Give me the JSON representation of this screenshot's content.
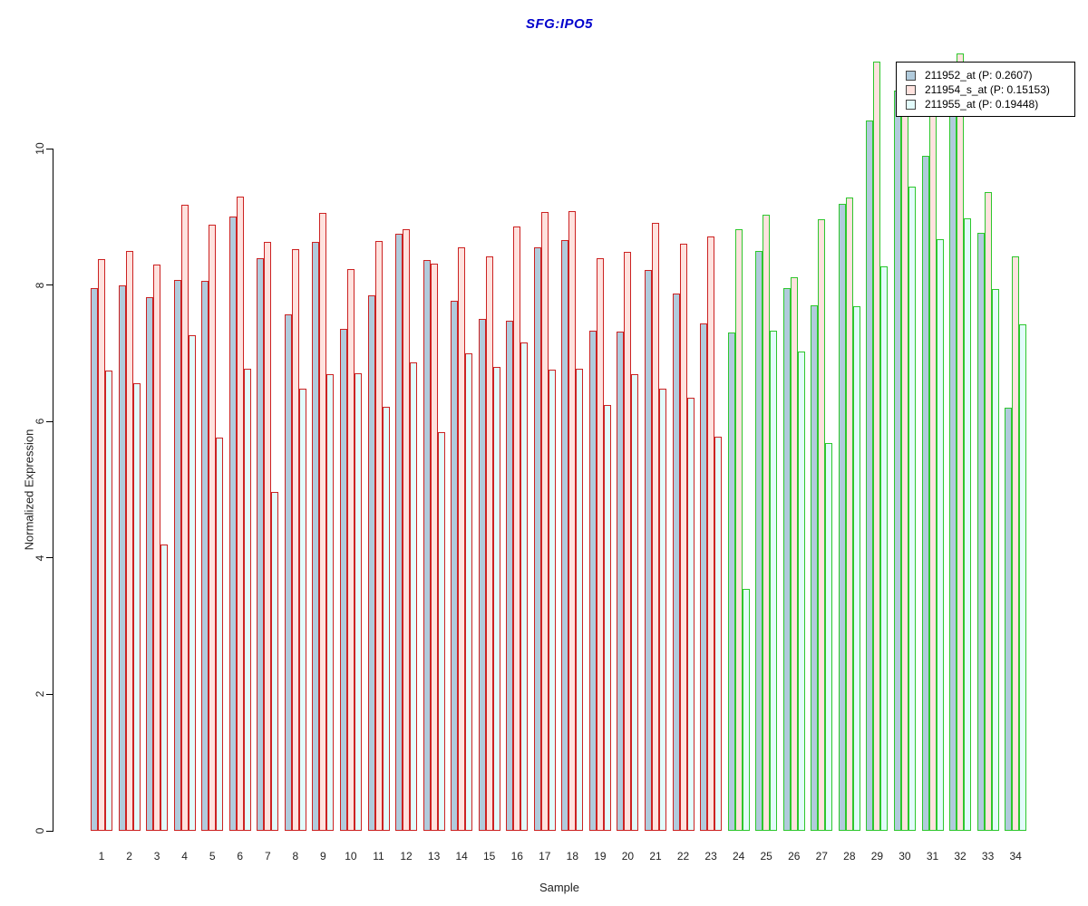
{
  "chart_data": {
    "type": "bar",
    "title": "SFG:IPO5",
    "title_color": "#0000CC",
    "xlabel": "Sample",
    "ylabel": "Normalized Expression",
    "ylim": [
      0,
      10
    ],
    "yticks": [
      0,
      2,
      4,
      6,
      8,
      10
    ],
    "grid": false,
    "legend_position": "top-right",
    "categories": [
      1,
      2,
      3,
      4,
      5,
      6,
      7,
      8,
      9,
      10,
      11,
      12,
      13,
      14,
      15,
      16,
      17,
      18,
      19,
      20,
      21,
      22,
      23,
      24,
      25,
      26,
      27,
      28,
      29,
      30,
      31,
      32,
      33,
      34
    ],
    "bar_outline_groups": {
      "samples_1_to_23": "#CC2222",
      "samples_24_to_34": "#2DC72D"
    },
    "series": [
      {
        "name": "211952_at",
        "p_value": "0.2607",
        "legend_label": "211952_at (P: 0.2607)",
        "fill": "#B1CBDC",
        "values": [
          7.95,
          8.0,
          7.82,
          8.08,
          8.06,
          9.0,
          8.39,
          7.57,
          8.63,
          7.36,
          7.85,
          8.75,
          8.37,
          7.77,
          7.5,
          7.48,
          8.55,
          8.66,
          7.33,
          7.32,
          8.22,
          7.87,
          7.44,
          7.3,
          8.5,
          7.95,
          7.7,
          9.19,
          10.41,
          10.85,
          9.9,
          10.9,
          8.76,
          6.2
        ]
      },
      {
        "name": "211954_s_at",
        "p_value": "0.15153",
        "legend_label": "211954_s_at (P: 0.15153)",
        "fill": "#FFE2DE",
        "values": [
          8.38,
          8.5,
          8.3,
          9.17,
          8.88,
          9.3,
          8.63,
          8.52,
          9.06,
          8.23,
          8.64,
          8.82,
          8.31,
          8.55,
          8.42,
          8.86,
          9.07,
          9.08,
          8.39,
          8.49,
          8.91,
          8.61,
          8.71,
          8.82,
          9.03,
          8.11,
          8.96,
          9.28,
          11.27,
          10.9,
          10.85,
          11.39,
          9.36,
          8.42
        ]
      },
      {
        "name": "211955_at",
        "p_value": "0.19448",
        "legend_label": "211955_at (P: 0.19448)",
        "fill": "#E2FBFB",
        "values": [
          6.75,
          6.56,
          4.2,
          7.26,
          5.76,
          6.77,
          4.97,
          6.48,
          6.69,
          6.71,
          6.21,
          6.87,
          5.84,
          7.0,
          6.8,
          7.16,
          6.76,
          6.77,
          6.24,
          6.69,
          6.48,
          6.35,
          5.78,
          3.55,
          7.33,
          7.03,
          5.68,
          7.69,
          8.27,
          9.44,
          8.67,
          8.98,
          7.94,
          7.43
        ]
      }
    ],
    "note": "Values estimated from pixels; bar tops for some bars of samples 30-32 are hidden behind the legend box."
  }
}
